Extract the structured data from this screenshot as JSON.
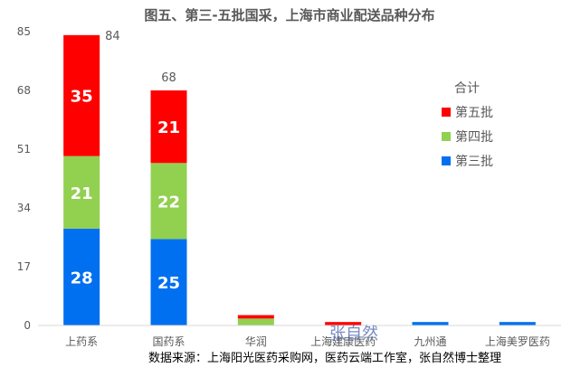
{
  "chart_data": {
    "type": "bar",
    "stacked": true,
    "title": "图五、第三-五批国采，上海市商业配送品种分布",
    "categories": [
      "上药系",
      "国药系",
      "华润",
      "上海建康医药",
      "九州通",
      "上海美罗医药"
    ],
    "series": [
      {
        "name": "第三批",
        "values": [
          28,
          25,
          0,
          0,
          1,
          1
        ],
        "color": "#0070f0",
        "show_labels": true
      },
      {
        "name": "第四批",
        "values": [
          21,
          22,
          2,
          0,
          0,
          0
        ],
        "color": "#92d050",
        "show_labels": true
      },
      {
        "name": "第五批",
        "values": [
          35,
          21,
          1,
          1,
          0,
          0
        ],
        "color": "#ff0000",
        "show_labels": true
      }
    ],
    "totals": [
      84,
      68,
      null,
      null,
      null,
      null
    ],
    "ylim": [
      0,
      85
    ],
    "yticks": [
      0,
      17,
      34,
      51,
      68,
      85
    ],
    "legend": {
      "title": "合计",
      "position": "right"
    },
    "grid": false
  },
  "source_note": "数据来源：上海阳光医药采购网，医药云端工作室，张自然博士整理",
  "watermark": "张自然"
}
